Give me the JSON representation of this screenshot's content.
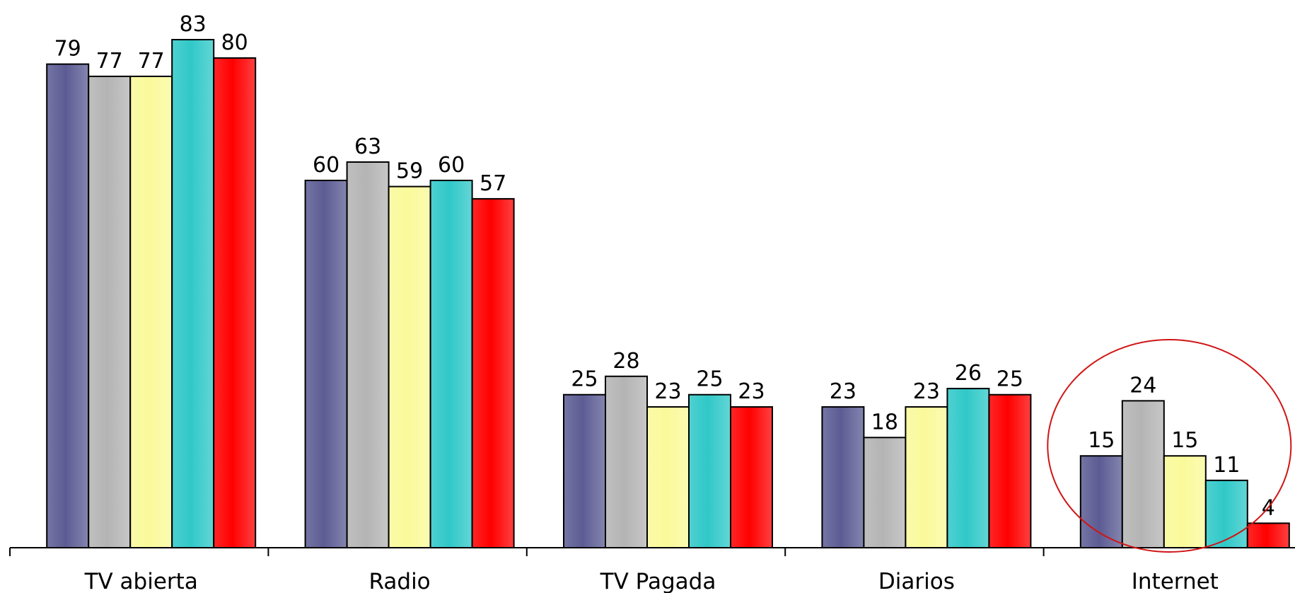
{
  "chart_data": {
    "type": "bar",
    "categories": [
      "TV abierta",
      "Radio",
      "TV Pagada",
      "Diarios",
      "Internet"
    ],
    "series": [
      {
        "color": "#5c5c94",
        "values": [
          79,
          60,
          25,
          23,
          15
        ]
      },
      {
        "color": "#b4b4b4",
        "values": [
          77,
          63,
          28,
          18,
          24
        ]
      },
      {
        "color": "#fafa9a",
        "values": [
          77,
          59,
          23,
          23,
          15
        ]
      },
      {
        "color": "#30c8c8",
        "values": [
          83,
          60,
          25,
          26,
          11
        ]
      },
      {
        "color": "#ff0000",
        "values": [
          80,
          57,
          23,
          25,
          4
        ]
      }
    ],
    "title": "",
    "xlabel": "",
    "ylabel": "",
    "ylim": [
      0,
      83
    ],
    "grid": false,
    "legend": "none",
    "data_labels": true,
    "highlight": {
      "category": "Internet",
      "shape": "ellipse",
      "color": "#d01515"
    }
  }
}
